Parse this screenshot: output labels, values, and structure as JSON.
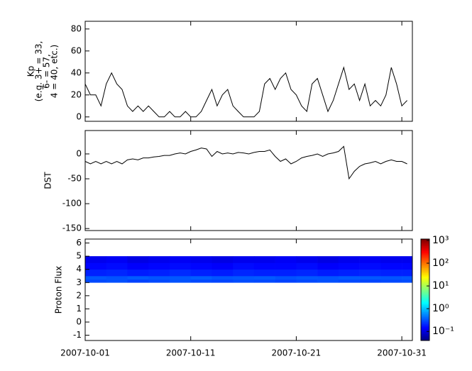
{
  "chart_data": [
    {
      "type": "line",
      "ylabel": [
        "Kp",
        "(e.g. 3+ = 33,",
        "6- = 57,",
        "4 = 40, etc.)"
      ],
      "color": "#000000",
      "xlim": [
        0,
        31
      ],
      "xticks": [
        {
          "value": 0,
          "label": "2007-10-01"
        },
        {
          "value": 10,
          "label": "2007-10-11"
        },
        {
          "value": 20,
          "label": "2007-10-21"
        },
        {
          "value": 30,
          "label": "2007-10-31"
        }
      ],
      "ylim": [
        -4,
        87
      ],
      "yticks": [
        0,
        20,
        40,
        60,
        80
      ],
      "x": [
        0,
        0.5,
        1,
        1.5,
        2,
        2.5,
        3,
        3.5,
        4,
        4.5,
        5,
        5.5,
        6,
        6.5,
        7,
        7.5,
        8,
        8.5,
        9,
        9.5,
        10,
        10.5,
        11,
        11.5,
        12,
        12.5,
        13,
        13.5,
        14,
        14.5,
        15,
        15.5,
        16,
        16.5,
        17,
        17.5,
        18,
        18.5,
        19,
        19.5,
        20,
        20.5,
        21,
        21.5,
        22,
        22.5,
        23,
        23.5,
        24,
        24.5,
        25,
        25.5,
        26,
        26.5,
        27,
        27.5,
        28,
        28.5,
        29,
        29.5,
        30,
        30.5
      ],
      "values": [
        30,
        20,
        20,
        10,
        30,
        40,
        30,
        25,
        10,
        5,
        10,
        5,
        10,
        5,
        0,
        0,
        5,
        0,
        0,
        5,
        0,
        0,
        5,
        15,
        25,
        10,
        20,
        25,
        10,
        5,
        0,
        0,
        0,
        5,
        30,
        35,
        25,
        35,
        40,
        25,
        20,
        10,
        5,
        30,
        35,
        20,
        5,
        15,
        30,
        45,
        25,
        30,
        15,
        30,
        10,
        15,
        10,
        20,
        45,
        30,
        10,
        15
      ]
    },
    {
      "type": "line",
      "ylabel": [
        "DST"
      ],
      "color": "#000000",
      "xlim": [
        0,
        31
      ],
      "xticks": [
        {
          "value": 0,
          "label": "2007-10-01"
        },
        {
          "value": 10,
          "label": "2007-10-11"
        },
        {
          "value": 20,
          "label": "2007-10-21"
        },
        {
          "value": 30,
          "label": "2007-10-31"
        }
      ],
      "ylim": [
        -154,
        47
      ],
      "yticks": [
        0,
        -50,
        -100,
        -150
      ],
      "x": [
        0,
        0.5,
        1,
        1.5,
        2,
        2.5,
        3,
        3.5,
        4,
        4.5,
        5,
        5.5,
        6,
        6.5,
        7,
        7.5,
        8,
        8.5,
        9,
        9.5,
        10,
        10.5,
        11,
        11.5,
        12,
        12.5,
        13,
        13.5,
        14,
        14.5,
        15,
        15.5,
        16,
        16.5,
        17,
        17.5,
        18,
        18.5,
        19,
        19.5,
        20,
        20.5,
        21,
        21.5,
        22,
        22.5,
        23,
        23.5,
        24,
        24.5,
        25,
        25.5,
        26,
        26.5,
        27,
        27.5,
        28,
        28.5,
        29,
        29.5,
        30,
        30.5
      ],
      "values": [
        -15,
        -20,
        -15,
        -20,
        -15,
        -20,
        -15,
        -20,
        -12,
        -10,
        -12,
        -8,
        -8,
        -6,
        -5,
        -3,
        -3,
        0,
        2,
        0,
        5,
        8,
        12,
        10,
        -5,
        5,
        0,
        2,
        0,
        3,
        2,
        0,
        3,
        5,
        5,
        8,
        -5,
        -15,
        -10,
        -20,
        -15,
        -8,
        -5,
        -3,
        0,
        -5,
        0,
        2,
        5,
        15,
        -50,
        -35,
        -25,
        -20,
        -18,
        -15,
        -20,
        -15,
        -12,
        -15,
        -15,
        -20
      ]
    },
    {
      "type": "heatmap",
      "ylabel": [
        "Proton Flux"
      ],
      "colormap": "jet",
      "log_color": true,
      "xlim": [
        0,
        31
      ],
      "xticks": [
        {
          "value": 0,
          "label": "2007-10-01"
        },
        {
          "value": 10,
          "label": "2007-10-11"
        },
        {
          "value": 20,
          "label": "2007-10-21"
        },
        {
          "value": 30,
          "label": "2007-10-31"
        }
      ],
      "ylim": [
        -1.4,
        6.3
      ],
      "yticks": [
        -1,
        0,
        1,
        2,
        3,
        4,
        5,
        6
      ],
      "zlim": [
        0.04,
        1150
      ],
      "zticks": [
        {
          "value": 0.1,
          "label": "10⁻¹"
        },
        {
          "value": 1,
          "label": "10⁰"
        },
        {
          "value": 10,
          "label": "10¹"
        },
        {
          "value": 100,
          "label": "10²"
        },
        {
          "value": 1000,
          "label": "10³"
        }
      ],
      "xbins": [
        0,
        2,
        4,
        6,
        8,
        10,
        12,
        14,
        16,
        18,
        20,
        22,
        24,
        26,
        28,
        30,
        31
      ],
      "ybins": [
        3,
        3.25,
        3.5,
        4,
        4.5,
        5
      ],
      "z": [
        [
          0.3,
          0.32,
          0.28,
          0.3,
          0.33,
          0.3,
          0.29,
          0.31,
          0.3,
          0.28,
          0.3,
          0.32,
          0.3,
          0.29,
          0.3,
          0.31
        ],
        [
          0.35,
          0.33,
          0.36,
          0.34,
          0.35,
          0.37,
          0.34,
          0.35,
          0.36,
          0.33,
          0.35,
          0.34,
          0.36,
          0.35,
          0.34,
          0.35
        ],
        [
          0.2,
          0.21,
          0.19,
          0.2,
          0.22,
          0.2,
          0.19,
          0.21,
          0.2,
          0.2,
          0.21,
          0.19,
          0.2,
          0.21,
          0.2,
          0.2
        ],
        [
          0.15,
          0.16,
          0.14,
          0.15,
          0.16,
          0.15,
          0.14,
          0.16,
          0.15,
          0.15,
          0.16,
          0.14,
          0.15,
          0.16,
          0.15,
          0.15
        ],
        [
          0.12,
          0.13,
          0.11,
          0.12,
          0.13,
          0.12,
          0.11,
          0.12,
          0.12,
          0.13,
          0.12,
          0.11,
          0.12,
          0.13,
          0.12,
          0.12
        ]
      ]
    }
  ]
}
